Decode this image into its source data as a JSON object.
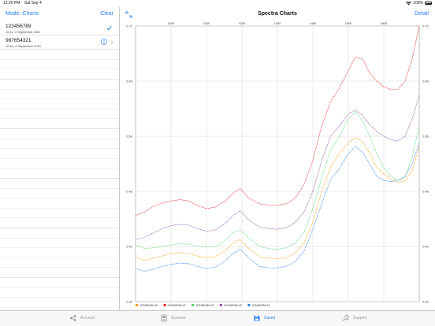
{
  "status": {
    "time": "12:20 PM",
    "date": "Sat Sep 4",
    "battery": "100%"
  },
  "sidebar": {
    "mode_label": "Mode: Charts",
    "clear_label": "Clear",
    "items": [
      {
        "title": "123456789",
        "subtitle": "11:11, 4 September 2021",
        "checked": true
      },
      {
        "title": "987654321",
        "subtitle": "10:50, 4 September 2021",
        "checked": false
      }
    ]
  },
  "detail": {
    "title": "Spectra Charts",
    "detail_label": "Detail"
  },
  "chart_data": {
    "type": "line",
    "x_ticks": [
      1000,
      1100,
      1200,
      1300,
      1400,
      1500,
      1600
    ],
    "x_tick_labels": [
      "1000",
      "1100",
      "1200",
      "1300",
      "1400",
      "1500",
      "1600"
    ],
    "xlim": [
      900,
      1700
    ],
    "y_ticks": [
      0.32,
      0.4,
      0.48,
      0.56,
      0.64,
      0.72
    ],
    "y_tick_labels": [
      "0.32",
      "0.40",
      "0.48",
      "0.56",
      "0.64",
      "0.72"
    ],
    "ylim": [
      0.32,
      0.72
    ],
    "grid": true,
    "legend_position": "bottom",
    "x": [
      900,
      925,
      950,
      975,
      1000,
      1025,
      1050,
      1075,
      1100,
      1125,
      1150,
      1175,
      1195,
      1220,
      1250,
      1275,
      1300,
      1325,
      1350,
      1375,
      1400,
      1425,
      1450,
      1475,
      1500,
      1520,
      1540,
      1560,
      1580,
      1600,
      1620,
      1640,
      1660,
      1680,
      1700
    ],
    "series": [
      {
        "name": "123456789 #5",
        "color": "#ff9500",
        "values": [
          0.385,
          0.38,
          0.383,
          0.386,
          0.39,
          0.391,
          0.39,
          0.386,
          0.384,
          0.385,
          0.393,
          0.405,
          0.41,
          0.397,
          0.385,
          0.383,
          0.382,
          0.384,
          0.39,
          0.405,
          0.435,
          0.48,
          0.515,
          0.535,
          0.55,
          0.558,
          0.552,
          0.535,
          0.515,
          0.505,
          0.498,
          0.493,
          0.495,
          0.51,
          0.545
        ]
      },
      {
        "name": "123456789 #2",
        "color": "#e8231c",
        "values": [
          0.445,
          0.45,
          0.458,
          0.463,
          0.466,
          0.468,
          0.466,
          0.459,
          0.455,
          0.457,
          0.465,
          0.477,
          0.484,
          0.47,
          0.462,
          0.46,
          0.46,
          0.462,
          0.47,
          0.49,
          0.525,
          0.575,
          0.61,
          0.63,
          0.655,
          0.675,
          0.672,
          0.652,
          0.64,
          0.632,
          0.628,
          0.628,
          0.64,
          0.672,
          0.72
        ]
      },
      {
        "name": "123456789 #3",
        "color": "#4cd964",
        "values": [
          0.402,
          0.397,
          0.398,
          0.4,
          0.402,
          0.404,
          0.403,
          0.401,
          0.399,
          0.4,
          0.408,
          0.42,
          0.424,
          0.412,
          0.4,
          0.397,
          0.396,
          0.398,
          0.405,
          0.42,
          0.455,
          0.5,
          0.54,
          0.56,
          0.585,
          0.595,
          0.583,
          0.56,
          0.535,
          0.515,
          0.502,
          0.496,
          0.5,
          0.53,
          0.575
        ]
      },
      {
        "name": "123456789 #3",
        "color": "#8e44ad",
        "values": [
          0.41,
          0.413,
          0.42,
          0.426,
          0.43,
          0.432,
          0.431,
          0.426,
          0.422,
          0.424,
          0.432,
          0.445,
          0.452,
          0.438,
          0.428,
          0.426,
          0.425,
          0.427,
          0.435,
          0.45,
          0.48,
          0.525,
          0.56,
          0.575,
          0.592,
          0.598,
          0.59,
          0.577,
          0.567,
          0.56,
          0.555,
          0.553,
          0.56,
          0.585,
          0.62
        ]
      },
      {
        "name": "123456789 #1",
        "color": "#2a7ff2",
        "values": [
          0.368,
          0.364,
          0.367,
          0.371,
          0.374,
          0.376,
          0.375,
          0.371,
          0.368,
          0.37,
          0.378,
          0.39,
          0.396,
          0.383,
          0.371,
          0.369,
          0.369,
          0.371,
          0.378,
          0.393,
          0.425,
          0.462,
          0.497,
          0.513,
          0.535,
          0.545,
          0.537,
          0.52,
          0.502,
          0.496,
          0.494,
          0.496,
          0.502,
          0.52,
          0.55
        ]
      }
    ]
  },
  "tabs": [
    {
      "label": "Account",
      "icon": "account-icon",
      "active": false
    },
    {
      "label": "Scanner",
      "icon": "scanner-icon",
      "active": false
    },
    {
      "label": "Saved",
      "icon": "saved-icon",
      "active": true
    },
    {
      "label": "Support",
      "icon": "support-icon",
      "active": false
    }
  ]
}
